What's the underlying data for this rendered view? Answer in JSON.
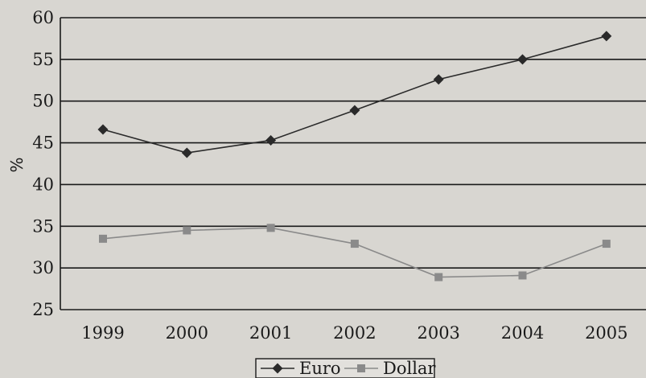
{
  "chart_data": {
    "type": "line",
    "title": "",
    "xlabel": "",
    "ylabel": "%",
    "categories": [
      "1999",
      "2000",
      "2001",
      "2002",
      "2003",
      "2004",
      "2005"
    ],
    "ylim": [
      25,
      60
    ],
    "yticks": [
      25,
      30,
      35,
      40,
      45,
      50,
      55,
      60
    ],
    "grid": "horizontal",
    "legend_position": "bottom-center",
    "series": [
      {
        "name": "Euro",
        "marker": "diamond",
        "color": "#2a2a2a",
        "values": [
          46.6,
          43.8,
          45.3,
          48.9,
          52.6,
          55.0,
          57.8
        ]
      },
      {
        "name": "Dollar",
        "marker": "square",
        "color": "#8a8a8a",
        "values": [
          33.5,
          34.5,
          34.8,
          32.9,
          28.9,
          29.1,
          32.9
        ]
      }
    ]
  }
}
